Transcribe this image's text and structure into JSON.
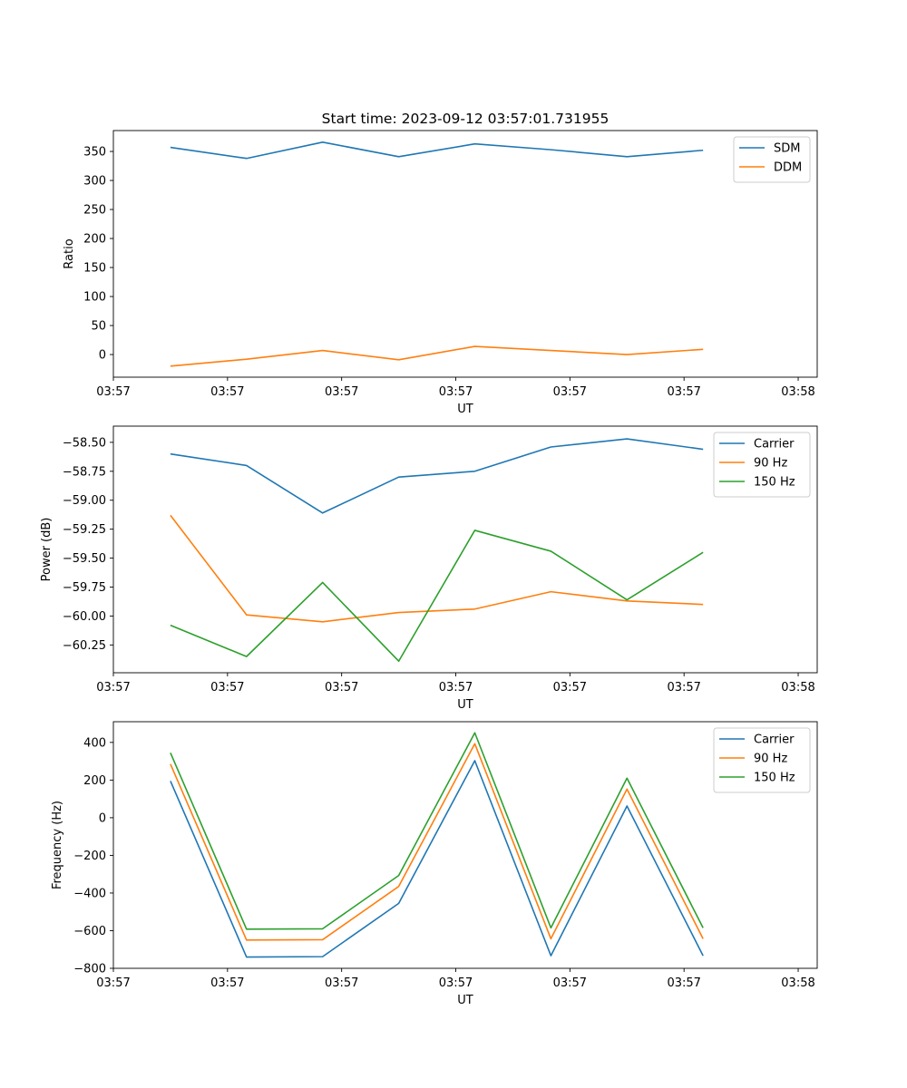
{
  "figure": {
    "title": "Start time: 2023-09-12 03:57:01.731955"
  },
  "chart_data": [
    {
      "type": "line",
      "xlabel": "UT",
      "ylabel": "Ratio",
      "xlim": [
        0,
        9.25
      ],
      "ylim": [
        -39,
        386
      ],
      "x": [
        0.75,
        1.75,
        2.75,
        3.75,
        4.75,
        5.75,
        6.75,
        7.75
      ],
      "xticks": [
        0,
        1.5,
        3,
        4.5,
        6,
        7.5,
        9
      ],
      "xticklabels": [
        "03:57",
        "03:57",
        "03:57",
        "03:57",
        "03:57",
        "03:57",
        "03:58"
      ],
      "yticks": [
        0,
        50,
        100,
        150,
        200,
        250,
        300,
        350
      ],
      "yticklabels": [
        "0",
        "50",
        "100",
        "150",
        "200",
        "250",
        "300",
        "350"
      ],
      "legend_position": "top-right",
      "series": [
        {
          "name": "SDM",
          "color": "#1f77b4",
          "values": [
            357,
            338,
            366,
            341,
            363,
            353,
            341,
            352
          ]
        },
        {
          "name": "DDM",
          "color": "#ff7f0e",
          "values": [
            -20,
            -8,
            7,
            -9,
            14,
            7,
            0,
            9
          ]
        }
      ]
    },
    {
      "type": "line",
      "xlabel": "UT",
      "ylabel": "Power (dB)",
      "xlim": [
        0,
        9.25
      ],
      "ylim": [
        -60.49,
        -58.36
      ],
      "x": [
        0.75,
        1.75,
        2.75,
        3.75,
        4.75,
        5.75,
        6.75,
        7.75
      ],
      "xticks": [
        0,
        1.5,
        3,
        4.5,
        6,
        7.5,
        9
      ],
      "xticklabels": [
        "03:57",
        "03:57",
        "03:57",
        "03:57",
        "03:57",
        "03:57",
        "03:58"
      ],
      "yticks": [
        -60.25,
        -60.0,
        -59.75,
        -59.5,
        -59.25,
        -59.0,
        -58.75,
        -58.5
      ],
      "yticklabels": [
        "−60.25",
        "−60.00",
        "−59.75",
        "−59.50",
        "−59.25",
        "−59.00",
        "−58.75",
        "−58.50"
      ],
      "legend_position": "top-right",
      "series": [
        {
          "name": "Carrier",
          "color": "#1f77b4",
          "values": [
            -58.6,
            -58.7,
            -59.11,
            -58.8,
            -58.75,
            -58.54,
            -58.47,
            -58.56
          ]
        },
        {
          "name": "90 Hz",
          "color": "#ff7f0e",
          "values": [
            -59.13,
            -59.99,
            -60.05,
            -59.97,
            -59.94,
            -59.79,
            -59.87,
            -59.9
          ]
        },
        {
          "name": "150 Hz",
          "color": "#2ca02c",
          "values": [
            -60.08,
            -60.35,
            -59.71,
            -60.39,
            -59.26,
            -59.44,
            -59.86,
            -59.45
          ]
        }
      ]
    },
    {
      "type": "line",
      "xlabel": "UT",
      "ylabel": "Frequency (Hz)",
      "xlim": [
        0,
        9.25
      ],
      "ylim": [
        -800,
        510
      ],
      "x": [
        0.75,
        1.75,
        2.75,
        3.75,
        4.75,
        5.75,
        6.75,
        7.75
      ],
      "xticks": [
        0,
        1.5,
        3,
        4.5,
        6,
        7.5,
        9
      ],
      "xticklabels": [
        "03:57",
        "03:57",
        "03:57",
        "03:57",
        "03:57",
        "03:57",
        "03:58"
      ],
      "yticks": [
        -800,
        -600,
        -400,
        -200,
        0,
        200,
        400
      ],
      "yticklabels": [
        "−800",
        "−600",
        "−400",
        "−200",
        "0",
        "200",
        "400"
      ],
      "legend_position": "top-right",
      "series": [
        {
          "name": "Carrier",
          "color": "#1f77b4",
          "values": [
            195,
            -740,
            -738,
            -455,
            303,
            -733,
            62,
            -733
          ]
        },
        {
          "name": "90 Hz",
          "color": "#ff7f0e",
          "values": [
            285,
            -650,
            -648,
            -365,
            393,
            -643,
            152,
            -643
          ]
        },
        {
          "name": "150 Hz",
          "color": "#2ca02c",
          "values": [
            345,
            -592,
            -590,
            -307,
            451,
            -585,
            210,
            -585
          ]
        }
      ]
    }
  ]
}
